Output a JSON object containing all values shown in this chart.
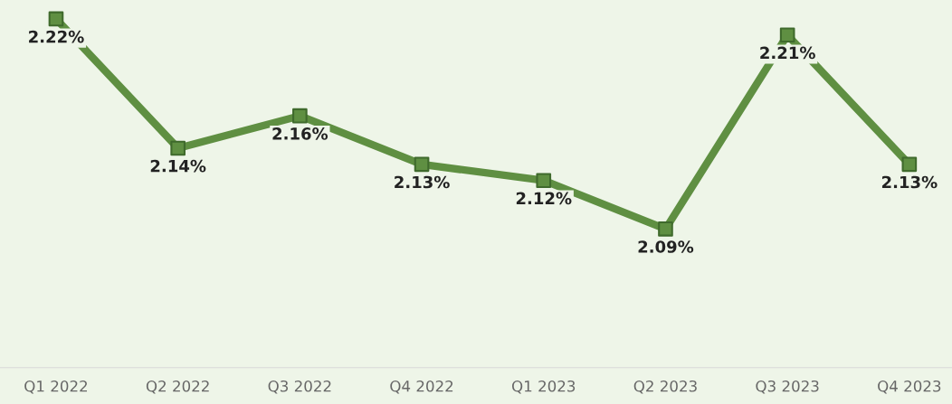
{
  "chart_data": {
    "type": "line",
    "categories": [
      "Q1 2022",
      "Q2 2022",
      "Q3 2022",
      "Q4 2022",
      "Q1 2023",
      "Q2 2023",
      "Q3 2023",
      "Q4 2023"
    ],
    "series": [
      {
        "color": "#5f8f42",
        "values": [
          2.22,
          2.14,
          2.16,
          2.13,
          2.12,
          2.09,
          2.21,
          2.13
        ],
        "value_labels": [
          "2.22%",
          "2.14%",
          "2.16%",
          "2.13%",
          "2.12%",
          "2.09%",
          "2.21%",
          "2.13%"
        ]
      }
    ],
    "tick_labels": "x",
    "marker": "square",
    "line_style": "solid",
    "grid": false
  }
}
